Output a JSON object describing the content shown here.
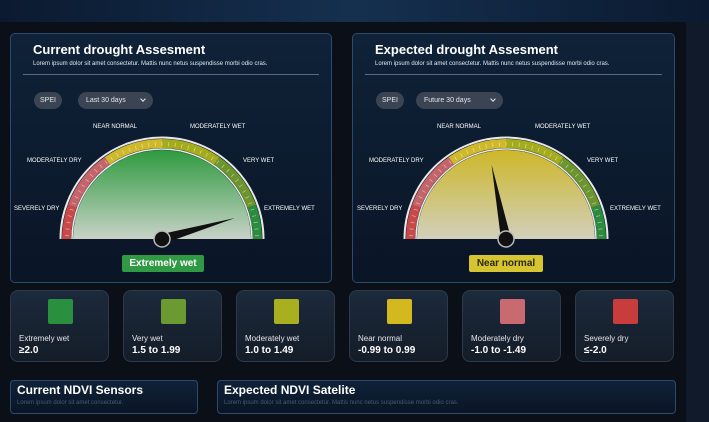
{
  "current": {
    "title": "Current drought Assesment",
    "subtitle": "Lorem ipsum dolor sit amet consectetur. Mattis nunc netus suspendisse morbi odio cras.",
    "index_label": "SPEI",
    "period": "Last 30 days",
    "status": "Extremely wet",
    "status_color": "#2f9a43"
  },
  "expected": {
    "title": "Expected drought Assesment",
    "subtitle": "Lorem ipsum dolor sit amet consectetur. Mattis nunc netus suspendisse morbi odio cras.",
    "index_label": "SPEI",
    "period": "Future 30 days",
    "status": "Near normal",
    "status_color": "#d6c430"
  },
  "gauge_labels": {
    "severely_dry": "SEVERELY DRY",
    "moderately_dry": "MODERATELY DRY",
    "near_normal": "NEAR NORMAL",
    "moderately_wet": "MODERATELY WET",
    "very_wet": "VERY WET",
    "extremely_wet": "EXTREMELY WET"
  },
  "categories": [
    {
      "label": "Extremely wet",
      "range": "≥2.0",
      "color": "#2a9040"
    },
    {
      "label": "Very wet",
      "range": "1.5 to 1.99",
      "color": "#6a9a30"
    },
    {
      "label": "Moderately wet",
      "range": "1.0 to 1.49",
      "color": "#a8b020"
    },
    {
      "label": "Near normal",
      "range": "-0.99 to 0.99",
      "color": "#d4b820"
    },
    {
      "label": "Moderately dry",
      "range": "-1.0 to -1.49",
      "color": "#c86a70"
    },
    {
      "label": "Severely dry",
      "range": "≤-2.0",
      "color": "#c83c3c"
    }
  ],
  "ndvi_sensors": {
    "title": "Current NDVI Sensors",
    "subtitle": "Lorem ipsum dolor sit amet consectetur."
  },
  "ndvi_satellite": {
    "title": "Expected NDVI Satelite",
    "subtitle": "Lorem ipsum dolor sit amet consectetur. Mattis nunc netus suspendisse morbi odio cras."
  }
}
